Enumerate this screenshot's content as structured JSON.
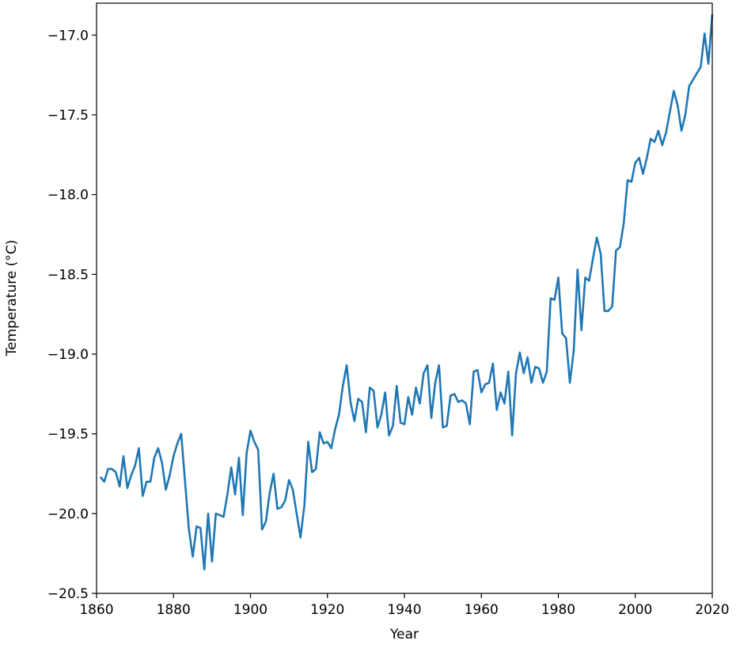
{
  "chart_data": {
    "type": "line",
    "xlabel": "Year",
    "ylabel": "Temperature (°C)",
    "x": [
      1861,
      1862,
      1863,
      1864,
      1865,
      1866,
      1867,
      1868,
      1869,
      1870,
      1871,
      1872,
      1873,
      1874,
      1875,
      1876,
      1877,
      1878,
      1879,
      1880,
      1881,
      1882,
      1883,
      1884,
      1885,
      1886,
      1887,
      1888,
      1889,
      1890,
      1891,
      1892,
      1893,
      1894,
      1895,
      1896,
      1897,
      1898,
      1899,
      1900,
      1901,
      1902,
      1903,
      1904,
      1905,
      1906,
      1907,
      1908,
      1909,
      1910,
      1911,
      1912,
      1913,
      1914,
      1915,
      1916,
      1917,
      1918,
      1919,
      1920,
      1921,
      1922,
      1923,
      1924,
      1925,
      1926,
      1927,
      1928,
      1929,
      1930,
      1931,
      1932,
      1933,
      1934,
      1935,
      1936,
      1937,
      1938,
      1939,
      1940,
      1941,
      1942,
      1943,
      1944,
      1945,
      1946,
      1947,
      1948,
      1949,
      1950,
      1951,
      1952,
      1953,
      1954,
      1955,
      1956,
      1957,
      1958,
      1959,
      1960,
      1961,
      1962,
      1963,
      1964,
      1965,
      1966,
      1967,
      1968,
      1969,
      1970,
      1971,
      1972,
      1973,
      1974,
      1975,
      1976,
      1977,
      1978,
      1979,
      1980,
      1981,
      1982,
      1983,
      1984,
      1985,
      1986,
      1987,
      1988,
      1989,
      1990,
      1991,
      1992,
      1993,
      1994,
      1995,
      1996,
      1997,
      1998,
      1999,
      2000,
      2001,
      2002,
      2003,
      2004,
      2005,
      2006,
      2007,
      2008,
      2009,
      2010,
      2011,
      2012,
      2013,
      2014,
      2015,
      2016,
      2017,
      2018,
      2019,
      2020
    ],
    "series": [
      {
        "name": "Temperature",
        "color": "#1f77b4",
        "values": [
          -19.77,
          -19.8,
          -19.72,
          -19.72,
          -19.74,
          -19.83,
          -19.64,
          -19.84,
          -19.76,
          -19.7,
          -19.59,
          -19.89,
          -19.8,
          -19.8,
          -19.65,
          -19.59,
          -19.68,
          -19.85,
          -19.76,
          -19.64,
          -19.56,
          -19.5,
          -19.8,
          -20.1,
          -20.27,
          -20.08,
          -20.09,
          -20.35,
          -20.0,
          -20.3,
          -20.0,
          -20.01,
          -20.02,
          -19.88,
          -19.71,
          -19.88,
          -19.65,
          -20.01,
          -19.62,
          -19.48,
          -19.55,
          -19.6,
          -20.1,
          -20.05,
          -19.87,
          -19.75,
          -19.97,
          -19.96,
          -19.92,
          -19.79,
          -19.85,
          -20.0,
          -20.15,
          -19.95,
          -19.55,
          -19.74,
          -19.72,
          -19.49,
          -19.56,
          -19.55,
          -19.59,
          -19.47,
          -19.38,
          -19.2,
          -19.07,
          -19.3,
          -19.42,
          -19.28,
          -19.3,
          -19.49,
          -19.21,
          -19.23,
          -19.46,
          -19.38,
          -19.24,
          -19.51,
          -19.45,
          -19.2,
          -19.43,
          -19.44,
          -19.27,
          -19.38,
          -19.21,
          -19.31,
          -19.12,
          -19.07,
          -19.4,
          -19.18,
          -19.07,
          -19.46,
          -19.45,
          -19.26,
          -19.25,
          -19.3,
          -19.29,
          -19.31,
          -19.44,
          -19.11,
          -19.1,
          -19.24,
          -19.19,
          -19.18,
          -19.06,
          -19.35,
          -19.24,
          -19.31,
          -19.11,
          -19.51,
          -19.12,
          -18.99,
          -19.12,
          -19.02,
          -19.18,
          -19.08,
          -19.09,
          -19.18,
          -19.11,
          -18.65,
          -18.66,
          -18.52,
          -18.87,
          -18.9,
          -19.18,
          -18.98,
          -18.47,
          -18.85,
          -18.52,
          -18.54,
          -18.4,
          -18.27,
          -18.37,
          -18.73,
          -18.73,
          -18.7,
          -18.35,
          -18.33,
          -18.18,
          -17.91,
          -17.92,
          -17.8,
          -17.77,
          -17.87,
          -17.77,
          -17.65,
          -17.67,
          -17.6,
          -17.69,
          -17.61,
          -17.48,
          -17.35,
          -17.44,
          -17.6,
          -17.5,
          -17.32,
          -17.28,
          -17.24,
          -17.2,
          -16.99,
          -17.18,
          -16.87
        ]
      }
    ],
    "xlim": [
      1860,
      2020
    ],
    "xticks": [
      1860,
      1880,
      1900,
      1920,
      1940,
      1960,
      1980,
      2000,
      2020
    ],
    "ylim": [
      -20.5,
      -16.8
    ],
    "yticks": [
      {
        "value": -20.5,
        "label": "−20.5"
      },
      {
        "value": -20.0,
        "label": "−20.0"
      },
      {
        "value": -19.5,
        "label": "−19.5"
      },
      {
        "value": -19.0,
        "label": "−19.0"
      },
      {
        "value": -18.5,
        "label": "−18.5"
      },
      {
        "value": -18.0,
        "label": "−18.0"
      },
      {
        "value": -17.5,
        "label": "−17.5"
      },
      {
        "value": -17.0,
        "label": "−17.0"
      }
    ],
    "grid": false
  }
}
